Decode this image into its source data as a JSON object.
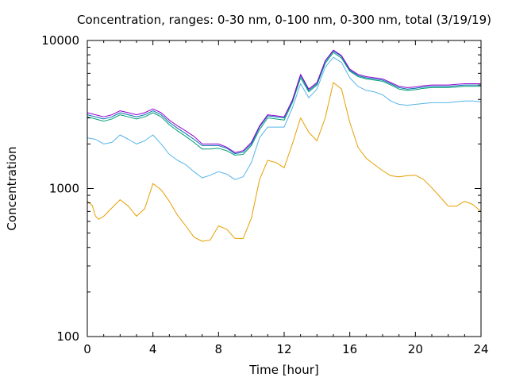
{
  "chart_data": {
    "type": "line",
    "title": "Concentration, ranges: 0-30 nm, 0-100 nm, 0-300 nm, total (3/19/19)",
    "xlabel": "Time [hour]",
    "ylabel": "Concentration",
    "xlim": [
      0,
      24
    ],
    "ylim": [
      100,
      10000
    ],
    "yscale": "log",
    "grid": false,
    "legend": "none",
    "x_ticks": [
      0,
      4,
      8,
      12,
      16,
      20,
      24
    ],
    "x_tick_labels": [
      "0",
      "4",
      "8",
      "12",
      "16",
      "20",
      "24"
    ],
    "y_ticks": [
      100,
      1000,
      10000
    ],
    "y_tick_labels": [
      "100",
      "1000",
      "10000"
    ],
    "series": [
      {
        "color": "#e69f00",
        "x": [
          0,
          0.3,
          0.5,
          0.7,
          1.0,
          1.5,
          2.0,
          2.5,
          3.0,
          3.5,
          4.0,
          4.5,
          5.0,
          5.5,
          6.0,
          6.5,
          7.0,
          7.5,
          8.0,
          8.5,
          9.0,
          9.5,
          10.0,
          10.5,
          11.0,
          11.5,
          12.0,
          12.5,
          13.0,
          13.5,
          14.0,
          14.5,
          15.0,
          15.5,
          16.0,
          16.5,
          17.0,
          17.5,
          18.0,
          18.5,
          19.0,
          19.5,
          20.0,
          20.5,
          21.0,
          21.5,
          22.0,
          22.5,
          23.0,
          23.5,
          24.0
        ],
        "y": [
          820,
          770,
          650,
          620,
          650,
          740,
          840,
          760,
          650,
          730,
          1080,
          980,
          820,
          660,
          560,
          470,
          440,
          450,
          560,
          530,
          460,
          460,
          630,
          1150,
          1550,
          1500,
          1380,
          2000,
          3000,
          2400,
          2100,
          3000,
          5200,
          4700,
          2800,
          1900,
          1600,
          1450,
          1320,
          1220,
          1200,
          1220,
          1230,
          1150,
          1010,
          880,
          760,
          760,
          820,
          780,
          700
        ]
      },
      {
        "color": "#56b4e9",
        "x": [
          0,
          0.5,
          1.0,
          1.5,
          2.0,
          2.5,
          3.0,
          3.5,
          4.0,
          4.5,
          5.0,
          5.5,
          6.0,
          6.5,
          7.0,
          7.5,
          8.0,
          8.5,
          9.0,
          9.5,
          10.0,
          10.5,
          11.0,
          11.5,
          12.0,
          12.5,
          13.0,
          13.5,
          14.0,
          14.5,
          15.0,
          15.5,
          16.0,
          16.5,
          17.0,
          17.5,
          18.0,
          18.5,
          19.0,
          19.5,
          20.0,
          20.5,
          21.0,
          21.5,
          22.0,
          22.5,
          23.0,
          23.5,
          24.0
        ],
        "y": [
          2200,
          2150,
          2000,
          2050,
          2300,
          2150,
          2000,
          2100,
          2300,
          2000,
          1700,
          1550,
          1450,
          1300,
          1180,
          1230,
          1300,
          1250,
          1150,
          1200,
          1500,
          2200,
          2600,
          2600,
          2600,
          3500,
          5100,
          4100,
          4700,
          6600,
          7700,
          7100,
          5600,
          4900,
          4600,
          4500,
          4300,
          3900,
          3700,
          3650,
          3700,
          3750,
          3800,
          3800,
          3800,
          3850,
          3900,
          3900,
          3850
        ]
      },
      {
        "color": "#009e73",
        "x": [
          0,
          0.5,
          1.0,
          1.5,
          2.0,
          2.5,
          3.0,
          3.5,
          4.0,
          4.5,
          5.0,
          5.5,
          6.0,
          6.5,
          7.0,
          7.5,
          8.0,
          8.5,
          9.0,
          9.5,
          10.0,
          10.5,
          11.0,
          11.5,
          12.0,
          12.5,
          13.0,
          13.5,
          14.0,
          14.5,
          15.0,
          15.5,
          16.0,
          16.5,
          17.0,
          17.5,
          18.0,
          18.5,
          19.0,
          19.5,
          20.0,
          20.5,
          21.0,
          21.5,
          22.0,
          22.5,
          23.0,
          23.5,
          24.0
        ],
        "y": [
          3050,
          2950,
          2850,
          2950,
          3150,
          3050,
          2950,
          3050,
          3250,
          3050,
          2700,
          2450,
          2250,
          2050,
          1850,
          1850,
          1870,
          1800,
          1680,
          1700,
          1950,
          2500,
          3000,
          2950,
          2900,
          3800,
          5600,
          4500,
          5000,
          7000,
          8300,
          7600,
          6200,
          5700,
          5500,
          5400,
          5300,
          5000,
          4700,
          4600,
          4650,
          4750,
          4800,
          4800,
          4800,
          4850,
          4900,
          4900,
          4900
        ]
      },
      {
        "color": "#0072b2",
        "x": [
          0,
          0.5,
          1.0,
          1.5,
          2.0,
          2.5,
          3.0,
          3.5,
          4.0,
          4.5,
          5.0,
          5.5,
          6.0,
          6.5,
          7.0,
          7.5,
          8.0,
          8.5,
          9.0,
          9.5,
          10.0,
          10.5,
          11.0,
          11.5,
          12.0,
          12.5,
          13.0,
          13.5,
          14.0,
          14.5,
          15.0,
          15.5,
          16.0,
          16.5,
          17.0,
          17.5,
          18.0,
          18.5,
          19.0,
          19.5,
          20.0,
          20.5,
          21.0,
          21.5,
          22.0,
          22.5,
          23.0,
          23.5,
          24.0
        ],
        "y": [
          3150,
          3050,
          2950,
          3050,
          3250,
          3150,
          3050,
          3150,
          3350,
          3150,
          2800,
          2550,
          2350,
          2150,
          1950,
          1950,
          1950,
          1870,
          1720,
          1760,
          2000,
          2600,
          3100,
          3050,
          3000,
          3900,
          5800,
          4600,
          5100,
          7200,
          8500,
          7800,
          6300,
          5800,
          5600,
          5500,
          5400,
          5100,
          4800,
          4700,
          4750,
          4850,
          4900,
          4900,
          4900,
          4950,
          5000,
          5000,
          5000
        ]
      },
      {
        "color": "#9400d3",
        "x": [
          0,
          0.5,
          1.0,
          1.5,
          2.0,
          2.5,
          3.0,
          3.5,
          4.0,
          4.5,
          5.0,
          5.5,
          6.0,
          6.5,
          7.0,
          7.5,
          8.0,
          8.5,
          9.0,
          9.5,
          10.0,
          10.5,
          11.0,
          11.5,
          12.0,
          12.5,
          13.0,
          13.5,
          14.0,
          14.5,
          15.0,
          15.5,
          16.0,
          16.5,
          17.0,
          17.5,
          18.0,
          18.5,
          19.0,
          19.5,
          20.0,
          20.5,
          21.0,
          21.5,
          22.0,
          22.5,
          23.0,
          23.5,
          24.0
        ],
        "y": [
          3250,
          3150,
          3050,
          3150,
          3350,
          3250,
          3150,
          3250,
          3450,
          3250,
          2900,
          2650,
          2450,
          2250,
          2000,
          2000,
          2000,
          1900,
          1750,
          1800,
          2050,
          2650,
          3150,
          3100,
          3050,
          3950,
          5900,
          4700,
          5200,
          7300,
          8600,
          7900,
          6400,
          5900,
          5700,
          5600,
          5500,
          5200,
          4900,
          4800,
          4850,
          4950,
          5000,
          5000,
          5000,
          5050,
          5100,
          5100,
          5100
        ]
      }
    ]
  }
}
